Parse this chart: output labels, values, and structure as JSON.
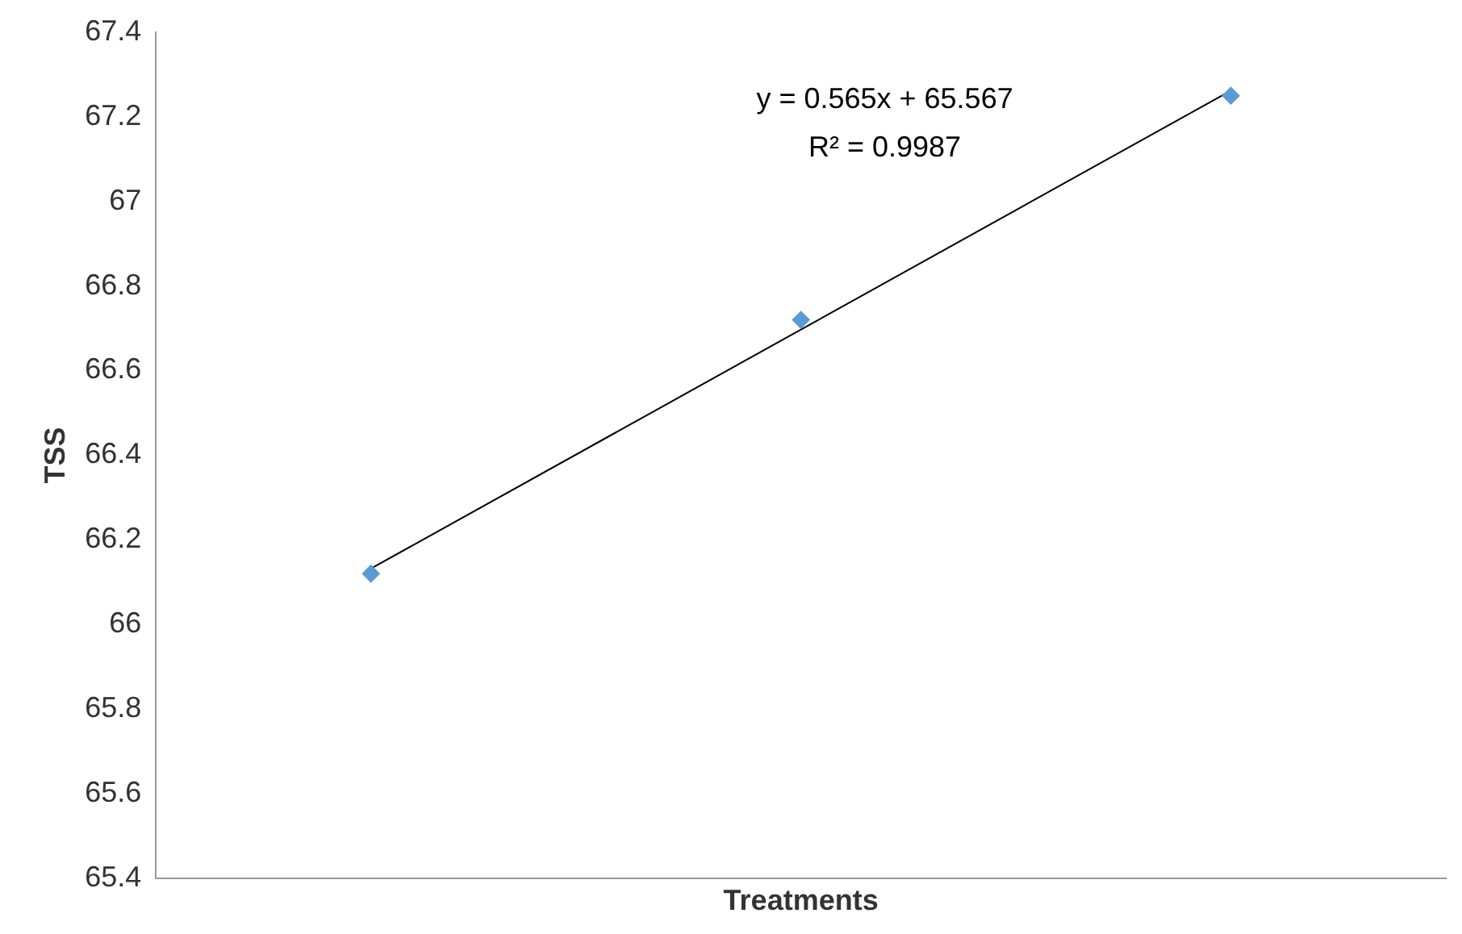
{
  "chart_data": {
    "type": "scatter",
    "xlabel": "Treatments",
    "ylabel": "TSS",
    "categories": [
      null,
      null,
      null
    ],
    "series": [
      {
        "color": "#5b9bd5",
        "marker": "diamond",
        "values": [
          66.12,
          66.72,
          67.25
        ]
      },
      {
        "type": "line",
        "color": "#000000",
        "marker": "none",
        "values": [
          66.132,
          66.697,
          67.262
        ]
      }
    ],
    "ylim": [
      65.4,
      67.4
    ],
    "yticks": [
      65.4,
      65.6,
      65.8,
      66,
      66.2,
      66.4,
      66.6,
      66.8,
      67,
      67.2,
      67.4
    ],
    "tick_labels": "y",
    "grid": false,
    "legend": false,
    "annotations": [
      "y = 0.565x + 65.567",
      "R² = 0.9987"
    ]
  }
}
